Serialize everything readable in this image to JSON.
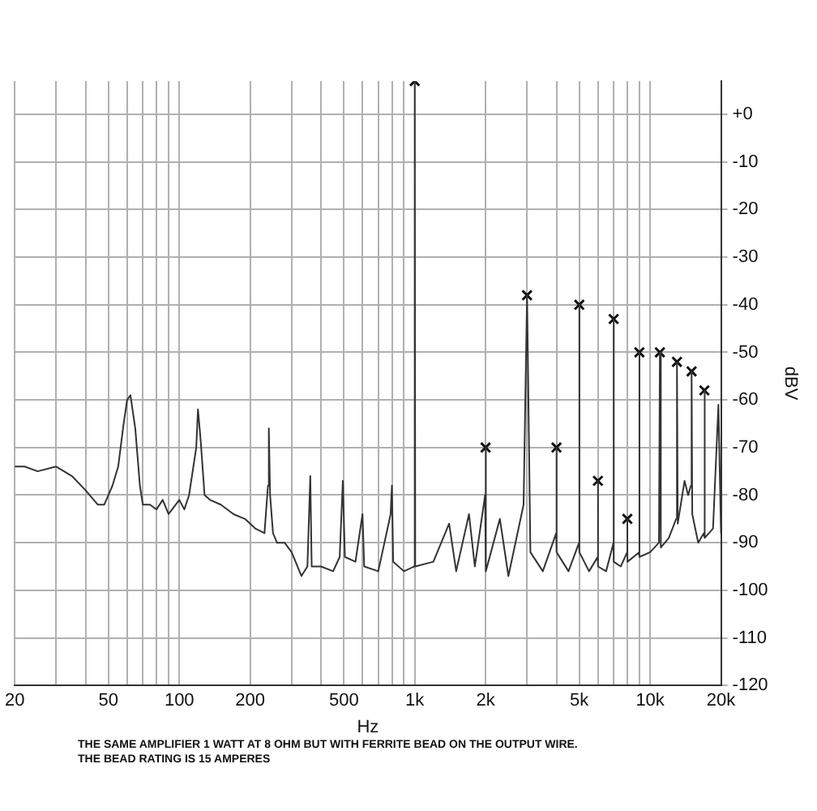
{
  "chart_data": {
    "type": "line",
    "xlabel": "Hz",
    "ylabel": "dBV",
    "log": "x",
    "grid": true,
    "legend": false,
    "xlim": [
      20,
      20000
    ],
    "xticks": [
      20,
      {
        "value": 30,
        "label": null
      },
      {
        "value": 40,
        "label": null
      },
      50,
      {
        "value": 60,
        "label": null
      },
      {
        "value": 70,
        "label": null
      },
      {
        "value": 80,
        "label": null
      },
      {
        "value": 90,
        "label": null
      },
      100,
      200,
      {
        "value": 300,
        "label": null
      },
      {
        "value": 400,
        "label": null
      },
      500,
      {
        "value": 600,
        "label": null
      },
      {
        "value": 700,
        "label": null
      },
      {
        "value": 800,
        "label": null
      },
      {
        "value": 900,
        "label": null
      },
      {
        "value": 1000,
        "label": "1k"
      },
      {
        "value": 2000,
        "label": "2k"
      },
      {
        "value": 3000,
        "label": null
      },
      {
        "value": 4000,
        "label": null
      },
      {
        "value": 5000,
        "label": "5k"
      },
      {
        "value": 6000,
        "label": null
      },
      {
        "value": 7000,
        "label": null
      },
      {
        "value": 8000,
        "label": null
      },
      {
        "value": 9000,
        "label": null
      },
      {
        "value": 10000,
        "label": "10k"
      },
      {
        "value": 20000,
        "label": "20k"
      }
    ],
    "ylim": [
      -120,
      7
    ],
    "yticks": [
      -120,
      -110,
      -100,
      -90,
      -80,
      -70,
      -60,
      -50,
      -40,
      -30,
      -20,
      -10,
      {
        "value": 0,
        "label": "+0"
      }
    ],
    "annotations": [
      "THE SAME AMPLIFIER 1 WATT AT 8 OHM BUT WITH FERRITE BEAD ON THE OUTPUT WIRE.",
      "THE BEAD RATING IS 15 AMPERES"
    ],
    "series": [
      {
        "marker": "none",
        "line_style": "solid",
        "color": "#333333",
        "x": [
          20,
          22,
          25,
          30,
          35,
          40,
          45,
          48,
          52,
          55,
          58,
          60,
          62,
          65,
          68,
          70,
          75,
          80,
          85,
          90,
          100,
          105,
          110,
          118,
          120,
          123,
          128,
          135,
          150,
          170,
          190,
          210,
          230,
          238,
          240,
          243,
          250,
          260,
          280,
          300,
          330,
          350,
          360,
          365,
          400,
          450,
          480,
          495,
          505,
          560,
          600,
          610,
          700,
          790,
          800,
          810,
          900,
          995,
          1000,
          1005,
          1200,
          1400,
          1500,
          1700,
          1800,
          1990,
          2000,
          2010,
          2300,
          2500,
          2900,
          3000,
          3100,
          3500,
          3990,
          4000,
          4010,
          4500,
          4990,
          5000,
          5010,
          5500,
          5990,
          6000,
          6010,
          6500,
          6990,
          7000,
          7010,
          7500,
          7990,
          8000,
          8010,
          8990,
          9000,
          9010,
          10000,
          10900,
          11000,
          11100,
          12000,
          12900,
          13000,
          13100,
          14000,
          14500,
          14900,
          15000,
          15100,
          16000,
          16900,
          17000,
          17100,
          18500,
          19500,
          20000
        ],
        "values": [
          -74,
          -74,
          -75,
          -74,
          -76,
          -79,
          -82,
          -82,
          -78,
          -74,
          -65,
          -60,
          -59,
          -66,
          -78,
          -82,
          -82,
          -83,
          -81,
          -84,
          -81,
          -83,
          -80,
          -70,
          -62,
          -68,
          -80,
          -81,
          -82,
          -84,
          -85,
          -87,
          -88,
          -78,
          -66,
          -80,
          -88,
          -90,
          -90,
          -92,
          -97,
          -95,
          -76,
          -95,
          -95,
          -96,
          -93,
          -77,
          -93,
          -94,
          -84,
          -95,
          -96,
          -84,
          -78,
          -94,
          -96,
          -95,
          7,
          -95,
          -94,
          -86,
          -96,
          -84,
          -95,
          -80,
          -70,
          -96,
          -85,
          -97,
          -82,
          -38,
          -92,
          -96,
          -88,
          -70,
          -92,
          -96,
          -90,
          -40,
          -92,
          -96,
          -93,
          -77,
          -95,
          -96,
          -90,
          -43,
          -94,
          -95,
          -92,
          -85,
          -94,
          -92,
          -50,
          -93,
          -92,
          -90,
          -50,
          -91,
          -89,
          -85,
          -52,
          -86,
          -77,
          -80,
          -78,
          -54,
          -84,
          -90,
          -88,
          -58,
          -89,
          -87,
          -61,
          -88
        ]
      },
      {
        "type": "scatter",
        "marker": "cross",
        "color": "#111111",
        "x": [
          1000,
          2000,
          3000,
          4000,
          5000,
          6000,
          7000,
          8000,
          9000,
          11000,
          13000,
          15000,
          17000
        ],
        "values": [
          7,
          -70,
          -38,
          -70,
          -40,
          -77,
          -43,
          -85,
          -50,
          -50,
          -52,
          -54,
          -58
        ]
      }
    ]
  }
}
